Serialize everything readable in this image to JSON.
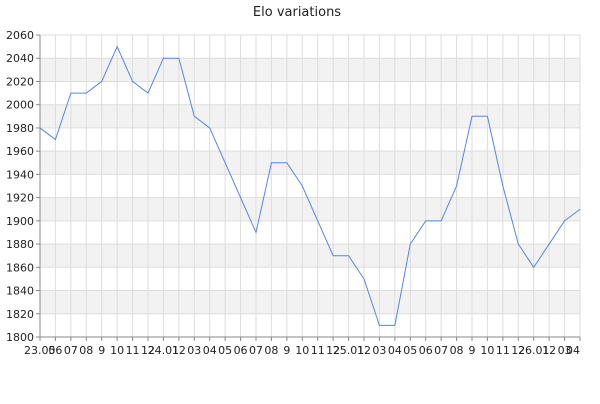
{
  "chart_data": {
    "type": "line",
    "title": "Elo variations",
    "xlabel": "",
    "ylabel": "",
    "ylim": [
      1800,
      2060
    ],
    "y_ticks": [
      1800,
      1820,
      1840,
      1860,
      1880,
      1900,
      1920,
      1940,
      1960,
      1980,
      2000,
      2020,
      2040,
      2060
    ],
    "x_tick_labels": [
      "23.05",
      "06",
      "07",
      "08",
      "9",
      "10",
      "11",
      "12",
      "24.01",
      "12",
      "03",
      "04",
      "05",
      "06",
      "07",
      "08",
      "9",
      "10",
      "11",
      "12",
      "25.01",
      "12",
      "03",
      "04",
      "05",
      "06",
      "07",
      "08",
      "9",
      "10",
      "11",
      "12",
      "26.01",
      "12",
      "03",
      "04"
    ],
    "grid": true,
    "alternating_bands": true,
    "colors": {
      "line": "#5588dd",
      "band": "#f2f2f2",
      "grid": "#dddddd",
      "axis": "#888888"
    },
    "series": [
      {
        "values": [
          1980,
          1970,
          2010,
          2010,
          2020,
          2050,
          2020,
          2010,
          2040,
          2040,
          1990,
          1980,
          1950,
          1920,
          1890,
          1950,
          1950,
          1930,
          1900,
          1870,
          1870,
          1850,
          1810,
          1810,
          1880,
          1900,
          1900,
          1930,
          1990,
          1990,
          1930,
          1880,
          1860,
          1880,
          1900,
          1910
        ]
      }
    ]
  }
}
